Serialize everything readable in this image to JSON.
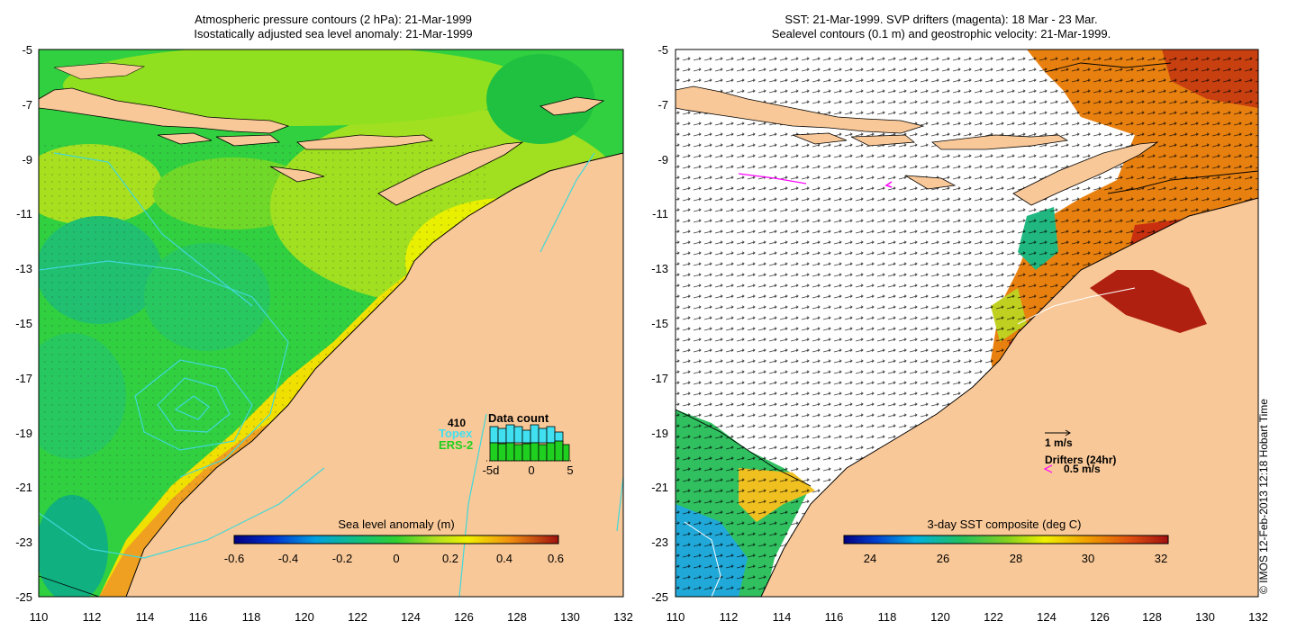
{
  "left_panel": {
    "title_line1": "Atmospheric pressure contours (2 hPa): 21-Mar-1999",
    "title_line2": "Isostatically adjusted sea level anomaly: 21-Mar-1999",
    "colorbar_label": "Sea level anomaly (m)",
    "colorbar_ticks": [
      "-0.6",
      "-0.4",
      "-0.2",
      "0",
      "0.2",
      "0.4",
      "0.6"
    ],
    "data_count": {
      "number": "410",
      "title": "Data count",
      "topex_label": "Topex",
      "ers_label": "ERS-2",
      "axis_ticks": [
        "-5d",
        "0",
        "5"
      ],
      "topex_color": "#40e0f0",
      "ers_color": "#20d020"
    }
  },
  "right_panel": {
    "title_line1": "SST: 21-Mar-1999. SVP drifters (magenta): 18 Mar - 23 Mar.",
    "title_line2": "Sealevel contours (0.1 m) and geostrophic velocity: 21-Mar-1999.",
    "colorbar_label": "3-day SST composite (deg C)",
    "colorbar_ticks": [
      "24",
      "26",
      "28",
      "30",
      "32"
    ],
    "velocity_scale_label": "1 m/s",
    "drifters_label": "Drifters (24hr)",
    "drifter_speed_label": "0.5 m/s",
    "drifter_color": "#ff00ff"
  },
  "axes": {
    "x_ticks": [
      "110",
      "112",
      "114",
      "116",
      "118",
      "120",
      "122",
      "124",
      "126",
      "128",
      "130",
      "132"
    ],
    "y_ticks": [
      "-5",
      "-7",
      "-9",
      "-11",
      "-13",
      "-15",
      "-17",
      "-19",
      "-21",
      "-23",
      "-25"
    ]
  },
  "colors": {
    "land": "#f9c898",
    "ocean_green": "#2fd040",
    "pressure_contour": "#40d8d8"
  },
  "copyright": "© IMOS 12-Feb-2013 12:18 Hobart Time"
}
